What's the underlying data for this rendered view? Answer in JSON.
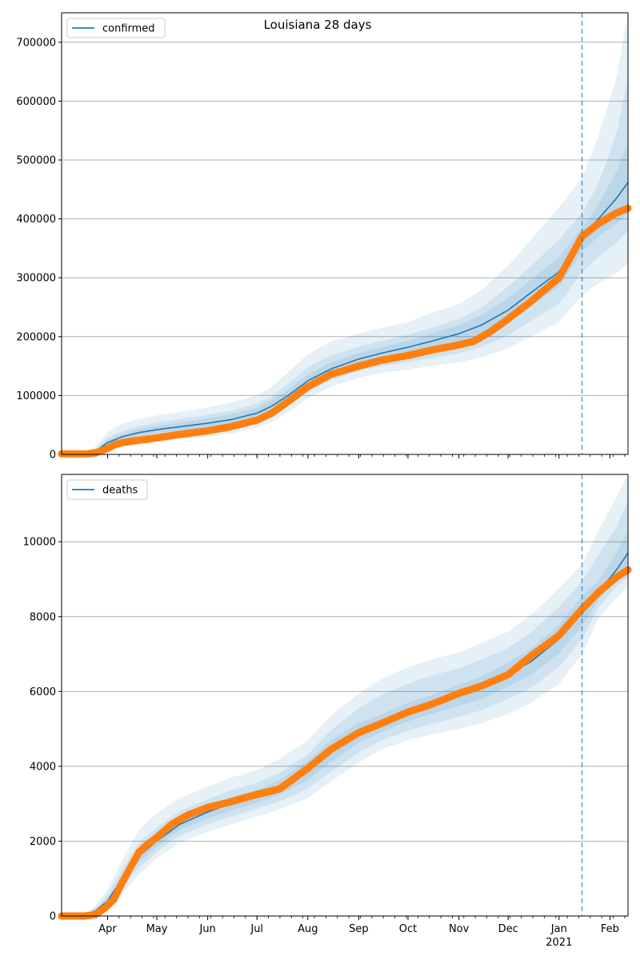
{
  "title": "Louisiana 28 days",
  "colors": {
    "model_line": "#1f77b4",
    "observed": "#ff7f0e",
    "band": "#1f77b4",
    "grid": "#b0b0b0",
    "vline": "#1f77b4"
  },
  "x_tick_labels": [
    {
      "label": "Apr",
      "date": "2020-04-01"
    },
    {
      "label": "May",
      "date": "2020-05-01"
    },
    {
      "label": "Jun",
      "date": "2020-06-01"
    },
    {
      "label": "Jul",
      "date": "2020-07-01"
    },
    {
      "label": "Aug",
      "date": "2020-08-01"
    },
    {
      "label": "Sep",
      "date": "2020-09-01"
    },
    {
      "label": "Oct",
      "date": "2020-10-01"
    },
    {
      "label": "Nov",
      "date": "2020-11-01"
    },
    {
      "label": "Dec",
      "date": "2020-12-01"
    },
    {
      "label": "Jan",
      "date": "2021-01-01"
    },
    {
      "label": "Feb",
      "date": "2021-02-01"
    }
  ],
  "x_year_label": "2021",
  "chart_data": [
    {
      "type": "line",
      "legend": "confirmed",
      "legend_position": "top-left",
      "grid": "y",
      "xlim": [
        "2020-03-04",
        "2021-02-12"
      ],
      "ylim": [
        0,
        750000
      ],
      "yticks": [
        0,
        100000,
        200000,
        300000,
        400000,
        500000,
        600000,
        700000
      ],
      "forecast_start": "2021-01-15",
      "model": {
        "name": "confirmed",
        "x": [
          "2020-03-04",
          "2020-03-20",
          "2020-03-25",
          "2020-04-01",
          "2020-04-10",
          "2020-04-20",
          "2020-05-01",
          "2020-05-15",
          "2020-06-01",
          "2020-06-15",
          "2020-07-01",
          "2020-07-10",
          "2020-07-20",
          "2020-08-01",
          "2020-08-15",
          "2020-09-01",
          "2020-09-15",
          "2020-10-01",
          "2020-10-15",
          "2020-11-01",
          "2020-11-15",
          "2020-12-01",
          "2020-12-15",
          "2021-01-01",
          "2021-01-15",
          "2021-01-25",
          "2021-02-05",
          "2021-02-12"
        ],
        "y": [
          2000,
          2000,
          6000,
          20000,
          30000,
          37000,
          42000,
          47000,
          53000,
          59000,
          70000,
          82000,
          100000,
          125000,
          145000,
          162000,
          172000,
          182000,
          192000,
          205000,
          220000,
          245000,
          275000,
          310000,
          370000,
          400000,
          435000,
          462000
        ],
        "bands": [
          {
            "lower": [
              0,
              0,
              0,
              8000,
              14000,
              18000,
              22000,
              26000,
              30000,
              35000,
              45000,
              55000,
              72000,
              95000,
              115000,
              130000,
              138000,
              144000,
              150000,
              156000,
              165000,
              180000,
              200000,
              225000,
              270000,
              290000,
              308000,
              325000
            ],
            "upper": [
              3000,
              4000,
              14000,
              38000,
              52000,
              60000,
              66000,
              72000,
              80000,
              88000,
              100000,
              115000,
              140000,
              170000,
              192000,
              205000,
              215000,
              225000,
              240000,
              255000,
              280000,
              320000,
              365000,
              420000,
              470000,
              540000,
              640000,
              750000
            ]
          },
          {
            "lower": [
              0,
              0,
              2000,
              12000,
              19000,
              24000,
              28000,
              32000,
              37000,
              42000,
              53000,
              64000,
              82000,
              106000,
              126000,
              142000,
              150000,
              157000,
              164000,
              172000,
              183000,
              202000,
              227000,
              256000,
              310000,
              335000,
              360000,
              380000
            ],
            "upper": [
              3000,
              3000,
              10000,
              29000,
              40000,
              48000,
              54000,
              60000,
              67000,
              74000,
              86000,
              99000,
              120000,
              148000,
              168000,
              183000,
              193000,
              203000,
              215000,
              230000,
              250000,
              285000,
              320000,
              365000,
              410000,
              460000,
              545000,
              640000
            ]
          },
          {
            "lower": [
              1000,
              1000,
              4000,
              16000,
              25000,
              31000,
              36000,
              40000,
              45000,
              50000,
              61000,
              73000,
              91000,
              115000,
              135000,
              152000,
              161000,
              170000,
              178000,
              189000,
              202000,
              225000,
              253000,
              285000,
              345000,
              370000,
              392000,
              410000
            ],
            "upper": [
              3000,
              3000,
              8000,
              24000,
              35000,
              43000,
              48000,
              54000,
              61000,
              68000,
              79000,
              91000,
              110000,
              136000,
              156000,
              172000,
              182000,
              193000,
              205000,
              219000,
              237000,
              265000,
              297000,
              335000,
              385000,
              425000,
              480000,
              530000
            ]
          }
        ]
      },
      "observed": {
        "x": [
          "2020-03-04",
          "2020-03-20",
          "2020-03-25",
          "2020-03-28",
          "2020-04-01",
          "2020-04-05",
          "2020-04-10",
          "2020-04-20",
          "2020-05-01",
          "2020-05-15",
          "2020-06-01",
          "2020-06-15",
          "2020-07-01",
          "2020-07-10",
          "2020-07-20",
          "2020-08-01",
          "2020-08-15",
          "2020-09-01",
          "2020-09-15",
          "2020-10-01",
          "2020-10-15",
          "2020-11-01",
          "2020-11-10",
          "2020-11-20",
          "2020-12-01",
          "2020-12-15",
          "2021-01-01",
          "2021-01-10",
          "2021-01-15",
          "2021-01-25",
          "2021-02-05",
          "2021-02-12"
        ],
        "y": [
          1000,
          1000,
          3000,
          6000,
          10000,
          16000,
          20000,
          24000,
          28000,
          34000,
          40000,
          47000,
          58000,
          70000,
          90000,
          115000,
          136000,
          150000,
          160000,
          168000,
          177000,
          186000,
          192000,
          208000,
          230000,
          260000,
          300000,
          345000,
          370000,
          392000,
          410000,
          418000
        ]
      }
    },
    {
      "type": "line",
      "legend": "deaths",
      "legend_position": "top-left",
      "grid": "y",
      "xlim": [
        "2020-03-04",
        "2021-02-12"
      ],
      "ylim": [
        0,
        11800
      ],
      "yticks": [
        0,
        2000,
        4000,
        6000,
        8000,
        10000
      ],
      "forecast_start": "2021-01-15",
      "model": {
        "name": "deaths",
        "x": [
          "2020-03-04",
          "2020-03-20",
          "2020-03-25",
          "2020-04-01",
          "2020-04-10",
          "2020-04-20",
          "2020-05-01",
          "2020-05-15",
          "2020-06-01",
          "2020-06-15",
          "2020-07-01",
          "2020-07-15",
          "2020-08-01",
          "2020-08-15",
          "2020-09-01",
          "2020-09-15",
          "2020-10-01",
          "2020-10-15",
          "2020-11-01",
          "2020-11-15",
          "2020-12-01",
          "2020-12-15",
          "2021-01-01",
          "2021-01-15",
          "2021-01-25",
          "2021-02-05",
          "2021-02-12"
        ],
        "y": [
          30,
          50,
          150,
          400,
          1000,
          1600,
          2000,
          2450,
          2780,
          3000,
          3200,
          3450,
          3900,
          4400,
          4900,
          5150,
          5450,
          5650,
          5900,
          6100,
          6450,
          6800,
          7400,
          8150,
          8650,
          9250,
          9700
        ],
        "bands": [
          {
            "lower": [
              0,
              0,
              40,
              200,
              600,
              1100,
              1550,
              1950,
              2250,
              2450,
              2650,
              2850,
              3150,
              3600,
              4100,
              4450,
              4700,
              4850,
              5000,
              5150,
              5400,
              5700,
              6200,
              7000,
              7950,
              8500,
              8800
            ],
            "upper": [
              60,
              120,
              300,
              700,
              1500,
              2300,
              2750,
              3150,
              3450,
              3700,
              3900,
              4200,
              4700,
              5350,
              5950,
              6350,
              6650,
              6850,
              7050,
              7300,
              7600,
              8050,
              8750,
              9400,
              10300,
              11200,
              11800
            ]
          },
          {
            "lower": [
              10,
              20,
              80,
              280,
              760,
              1290,
              1720,
              2150,
              2450,
              2650,
              2870,
              3070,
              3400,
              3860,
              4370,
              4700,
              4950,
              5130,
              5320,
              5500,
              5800,
              6100,
              6650,
              7400,
              8250,
              8800,
              9050
            ],
            "upper": [
              50,
              90,
              230,
              560,
              1260,
              1950,
              2360,
              2800,
              3120,
              3360,
              3560,
              3830,
              4320,
              4960,
              5550,
              5910,
              6210,
              6420,
              6620,
              6860,
              7160,
              7580,
              8250,
              8950,
              9650,
              10400,
              11100
            ]
          },
          {
            "lower": [
              20,
              30,
              110,
              340,
              880,
              1450,
              1860,
              2300,
              2610,
              2820,
              3030,
              3250,
              3640,
              4120,
              4630,
              4920,
              5200,
              5400,
              5620,
              5800,
              6130,
              6450,
              7020,
              7750,
              8450,
              9000,
              9350
            ],
            "upper": [
              40,
              70,
              190,
              460,
              1120,
              1750,
              2140,
              2600,
              2950,
              3180,
              3370,
              3640,
              4160,
              4680,
              5170,
              5390,
              5700,
              5900,
              6180,
              6400,
              6770,
              7150,
              7780,
              8550,
              8950,
              9700,
              10300
            ]
          }
        ]
      },
      "observed": {
        "x": [
          "2020-03-04",
          "2020-03-18",
          "2020-03-22",
          "2020-03-26",
          "2020-03-30",
          "2020-04-05",
          "2020-04-10",
          "2020-04-15",
          "2020-04-20",
          "2020-04-25",
          "2020-05-01",
          "2020-05-10",
          "2020-05-20",
          "2020-06-01",
          "2020-06-15",
          "2020-07-01",
          "2020-07-15",
          "2020-08-01",
          "2020-08-15",
          "2020-09-01",
          "2020-09-15",
          "2020-10-01",
          "2020-10-15",
          "2020-11-01",
          "2020-11-15",
          "2020-12-01",
          "2020-12-15",
          "2021-01-01",
          "2021-01-15",
          "2021-01-25",
          "2021-02-05",
          "2021-02-12"
        ],
        "y": [
          0,
          0,
          20,
          80,
          200,
          450,
          900,
          1300,
          1700,
          1900,
          2100,
          2450,
          2700,
          2900,
          3050,
          3250,
          3400,
          3950,
          4450,
          4900,
          5150,
          5450,
          5650,
          5950,
          6150,
          6450,
          6950,
          7500,
          8200,
          8650,
          9050,
          9250
        ]
      }
    }
  ]
}
